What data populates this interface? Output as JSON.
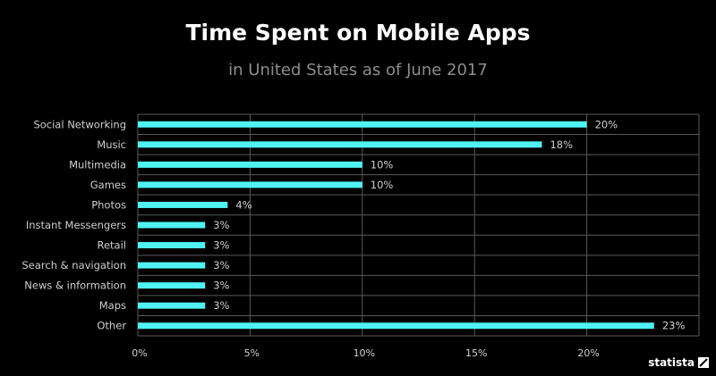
{
  "header": {
    "title": "Time Spent on Mobile Apps",
    "subtitle": "in United States as of June 2017"
  },
  "branding": {
    "logo_text": "statista"
  },
  "colors": {
    "background": "#000000",
    "bar": "#4ff3f3",
    "grid": "#5a5a5a",
    "label": "#cfcfcf",
    "title": "#ffffff",
    "subtitle": "#8c8c8c"
  },
  "chart_data": {
    "type": "bar",
    "orientation": "horizontal",
    "categories": [
      "Social Networking",
      "Music",
      "Multimedia",
      "Games",
      "Photos",
      "Instant Messengers",
      "Retail",
      "Search & navigation",
      "News & information",
      "Maps",
      "Other"
    ],
    "values": [
      20,
      18,
      10,
      10,
      4,
      3,
      3,
      3,
      3,
      3,
      23
    ],
    "value_labels": [
      "20%",
      "18%",
      "10%",
      "10%",
      "4%",
      "3%",
      "3%",
      "3%",
      "3%",
      "3%",
      "23%"
    ],
    "x_ticks": [
      0,
      5,
      10,
      15,
      20
    ],
    "x_tick_labels": [
      "0%",
      "5%",
      "10%",
      "15%",
      "20%"
    ],
    "xlim": [
      0,
      25
    ],
    "grid": true,
    "title": "Time Spent on Mobile Apps",
    "xlabel": "",
    "ylabel": ""
  }
}
